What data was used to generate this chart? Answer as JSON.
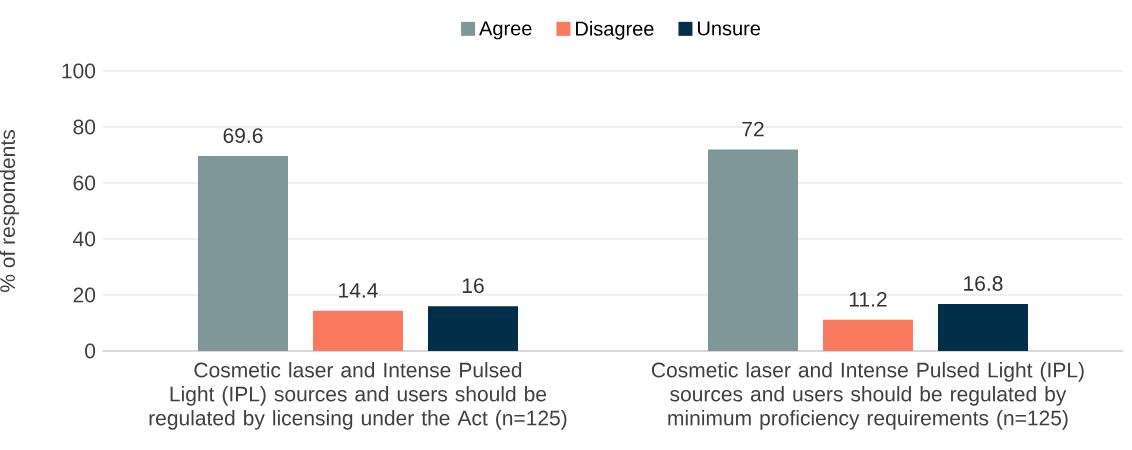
{
  "chart_data": {
    "type": "bar",
    "ylabel": "% of respondents",
    "categories": [
      "Cosmetic laser and Intense Pulsed Light (IPL) sources and users should be regulated by licensing under the Act (n=125)",
      "Cosmetic laser and Intense Pulsed Light (IPL) sources and users should be regulated by minimum proficiency requirements (n=125)"
    ],
    "series": [
      {
        "name": "Agree",
        "color": "#7f9799",
        "values": [
          69.6,
          72
        ]
      },
      {
        "name": "Disagree",
        "color": "#f97a5f",
        "values": [
          14.4,
          11.2
        ]
      },
      {
        "name": "Unsure",
        "color": "#002f4a",
        "values": [
          16,
          16.8
        ]
      }
    ],
    "ylim": [
      0,
      100
    ],
    "yticks": [
      0,
      20,
      40,
      60,
      80,
      100
    ],
    "grid": "y",
    "legend": "top",
    "data_labels": true
  }
}
